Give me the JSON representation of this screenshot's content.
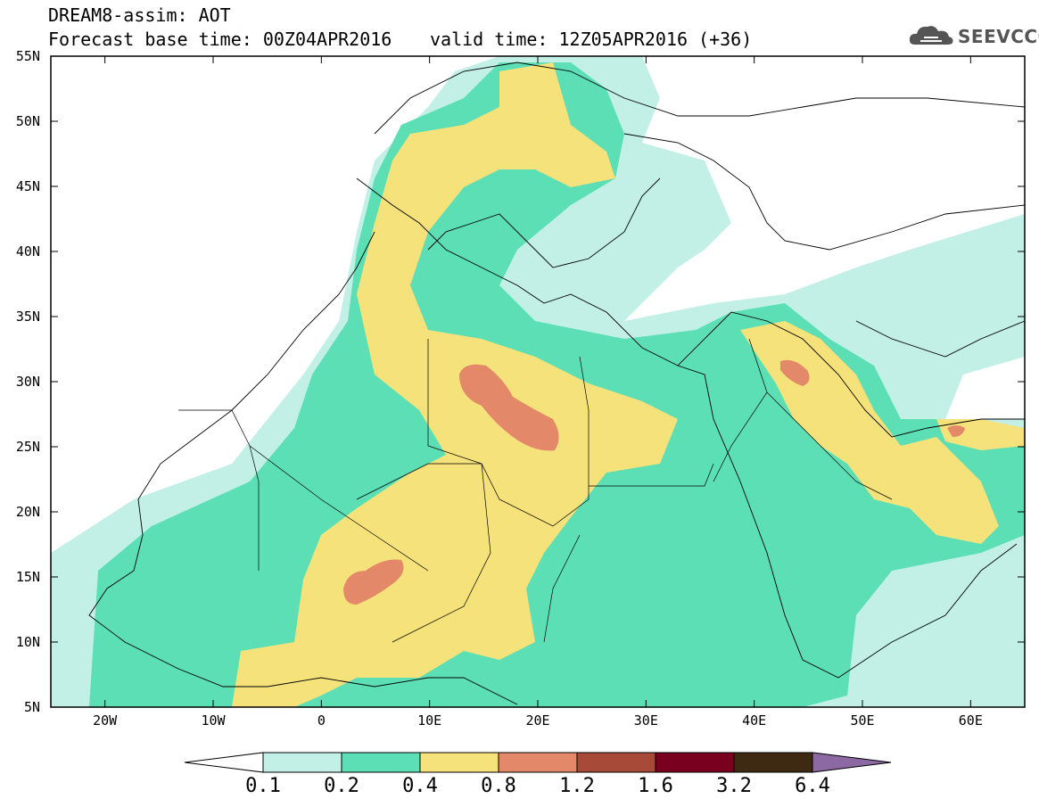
{
  "header": {
    "line1": "DREAM8-assim: AOT",
    "line2": "Forecast base time: 00Z04APR2016",
    "valid": "valid time: 12Z05APR2016 (+36)"
  },
  "logo": {
    "text": "SEEVCCC",
    "icon": "cloud-icon"
  },
  "map": {
    "lat_labels": [
      "55N",
      "50N",
      "45N",
      "40N",
      "35N",
      "30N",
      "25N",
      "20N",
      "15N",
      "10N",
      "5N"
    ],
    "lon_labels": [
      "20W",
      "10W",
      "0",
      "10E",
      "20E",
      "30E",
      "40E",
      "50E",
      "60E"
    ],
    "lon_range": [
      -25,
      65
    ],
    "lat_range": [
      5,
      55
    ]
  },
  "colorbar": {
    "labels": [
      "0.1",
      "0.2",
      "0.4",
      "0.8",
      "1.2",
      "1.6",
      "3.2",
      "6.4"
    ],
    "colors": [
      "#ffffff",
      "#c2f0e6",
      "#5ddfb6",
      "#f5e27a",
      "#e4886a",
      "#a84a38",
      "#7a0020",
      "#3e2a12",
      "#8d69a3"
    ]
  }
}
